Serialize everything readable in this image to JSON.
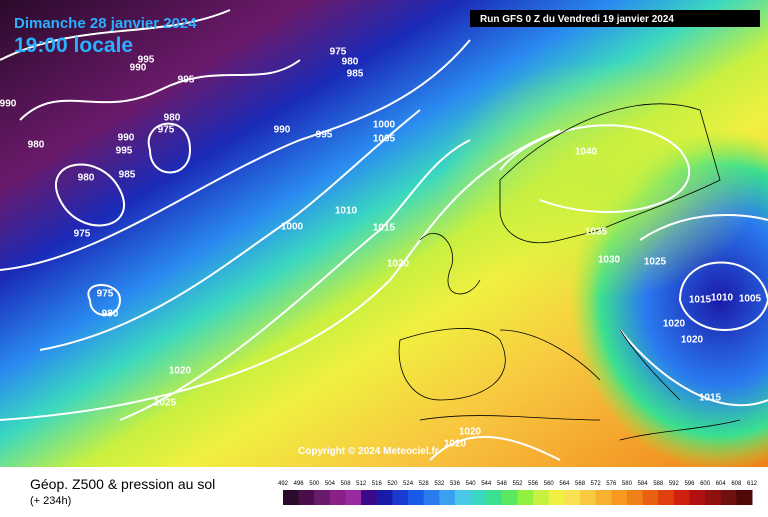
{
  "header": {
    "date": "Dimanche 28 janvier 2024",
    "time": "19:00 locale",
    "run": "Run GFS 0 Z du Vendredi 19 janvier 2024"
  },
  "copyright": "Copyright © 2024 Meteociel.fr",
  "footer": {
    "title": "Géop. Z500 & pression au sol",
    "lead": "(+ 234h)"
  },
  "legend": {
    "labels": [
      492,
      496,
      500,
      504,
      508,
      512,
      516,
      520,
      524,
      528,
      532,
      536,
      540,
      544,
      548,
      552,
      556,
      560,
      564,
      568,
      572,
      576,
      580,
      584,
      588,
      592,
      596,
      600,
      604,
      608,
      612
    ],
    "colors": [
      "#2b0b2b",
      "#4a0f4a",
      "#6a1a6a",
      "#8a1f8a",
      "#9a2aa0",
      "#3a0a8a",
      "#1a1aa8",
      "#1a3ad0",
      "#1a5ae8",
      "#2a7af0",
      "#3aa0f0",
      "#4ac8e8",
      "#3ad8c0",
      "#3ae090",
      "#5ae860",
      "#90f040",
      "#c8f040",
      "#f0f040",
      "#f8e050",
      "#f8c840",
      "#f8b030",
      "#f89820",
      "#f08018",
      "#e86010",
      "#e04010",
      "#d02010",
      "#b01010",
      "#901010",
      "#701010",
      "#500808"
    ]
  },
  "isobars": [
    "975",
    "980",
    "985",
    "995",
    "990",
    "995",
    "990",
    "980",
    "975",
    "990",
    "995",
    "985",
    "980",
    "980",
    "975",
    "975",
    "980",
    "990",
    "995",
    "1000",
    "1005",
    "1010",
    "1000",
    "1015",
    "1020",
    "1040",
    "1035",
    "1030",
    "1025",
    "1015",
    "1010",
    "1005",
    "1020",
    "1020",
    "1020",
    "1025",
    "1015",
    "1020",
    "1020"
  ]
}
